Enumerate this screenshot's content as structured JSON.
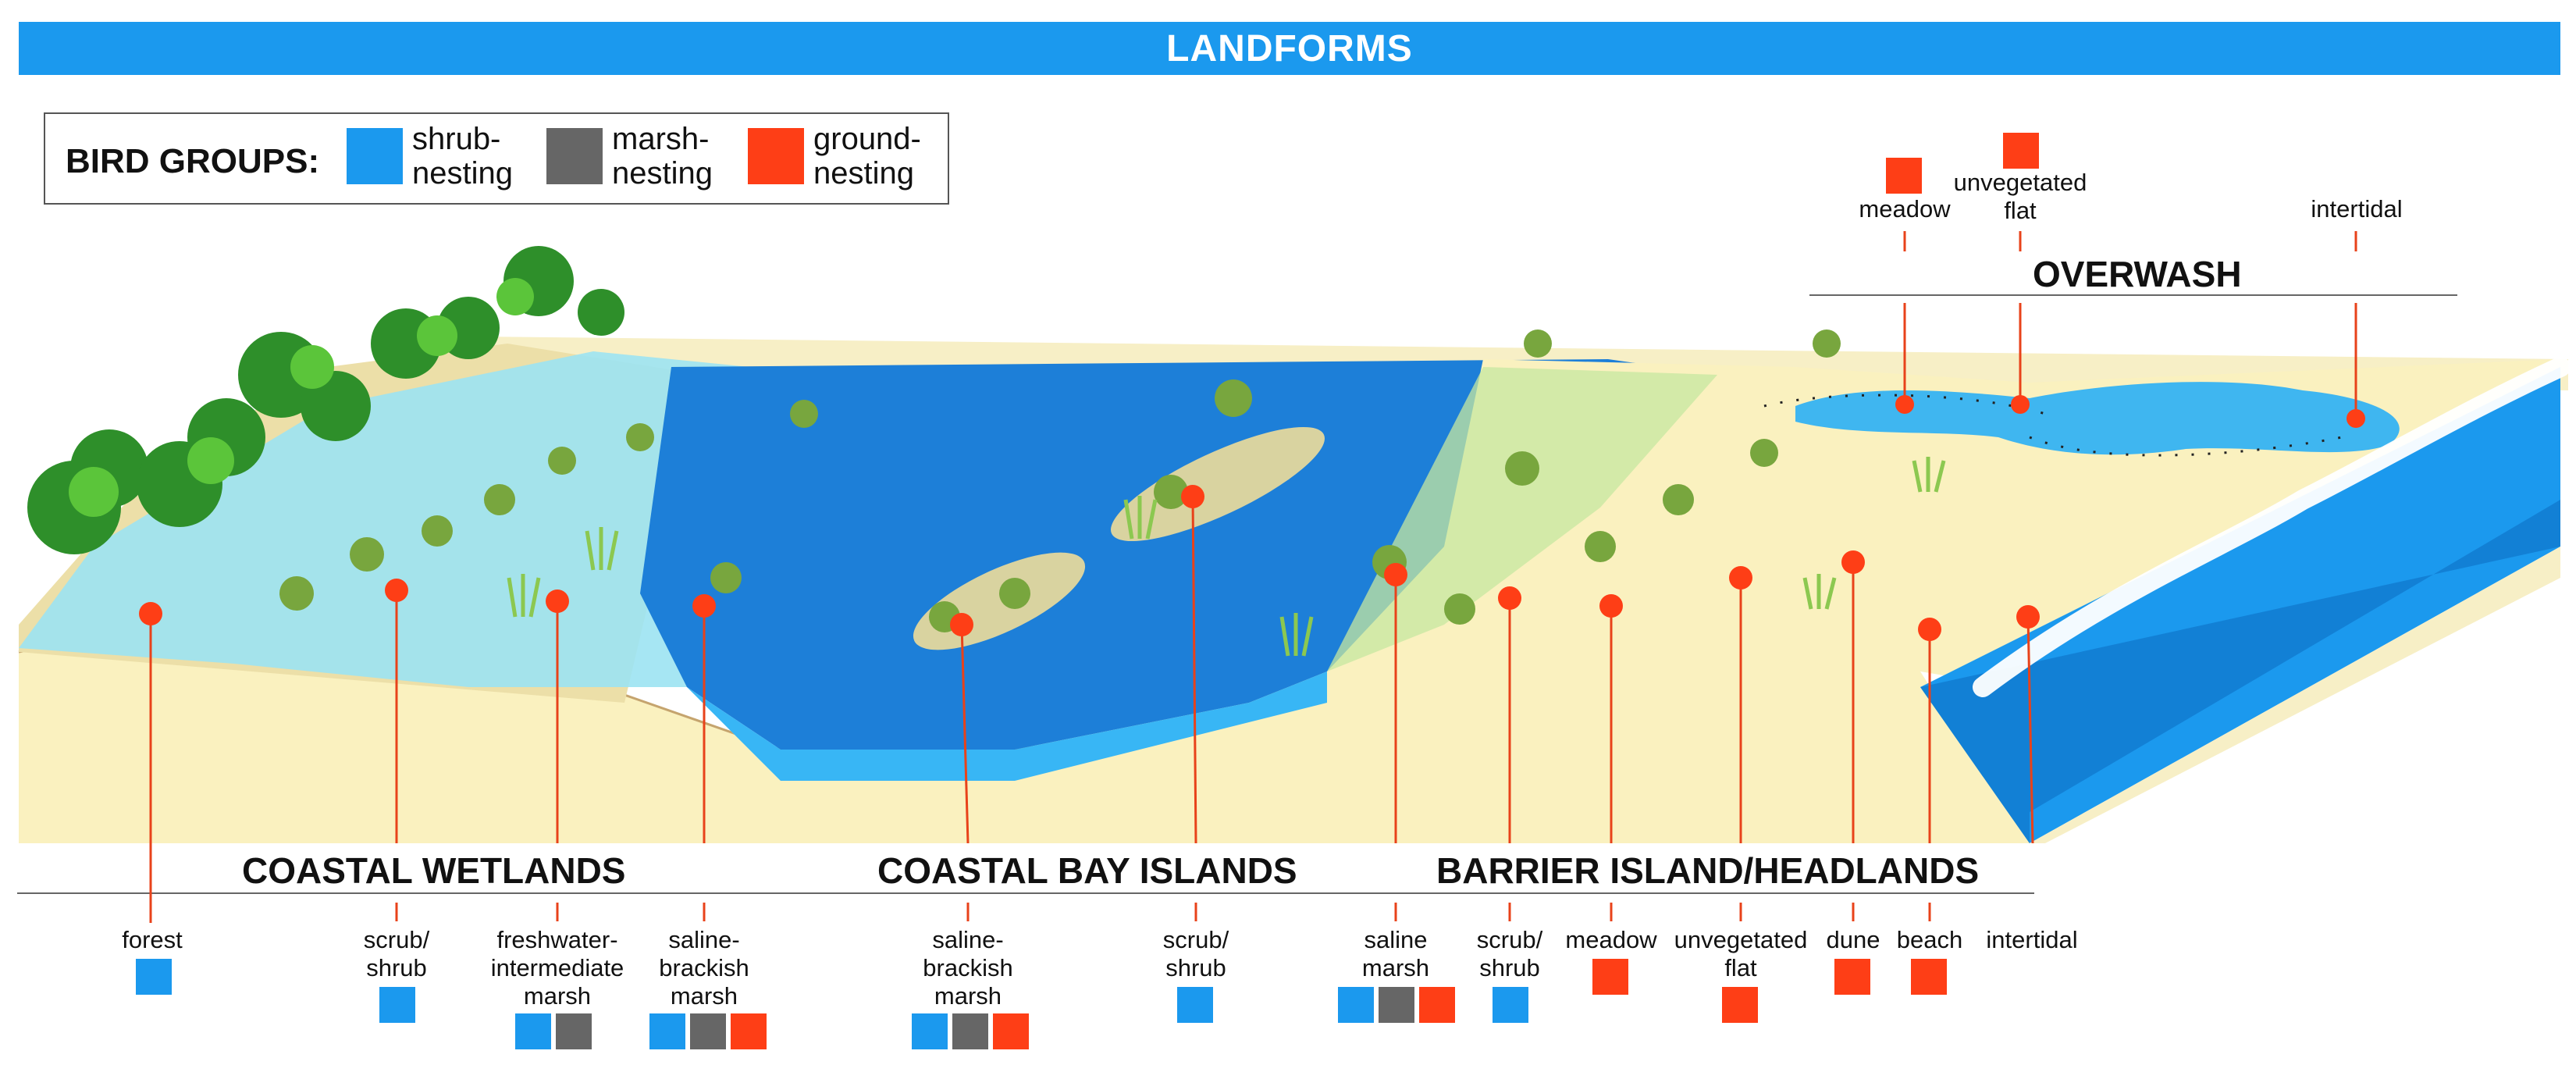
{
  "title": "LANDFORMS",
  "legend": {
    "title": "BIRD GROUPS:",
    "groups": [
      {
        "label": "shrub-\nnesting",
        "l1": "shrub-",
        "l2": "nesting",
        "color": "#1b99ee"
      },
      {
        "label": "marsh-\nnesting",
        "l1": "marsh-",
        "l2": "nesting",
        "color": "#666666"
      },
      {
        "label": "ground-\nnesting",
        "l1": "ground-",
        "l2": "nesting",
        "color": "#fe3e16"
      }
    ]
  },
  "sections": {
    "coastal_wetlands": "COASTAL WETLANDS",
    "coastal_bay_islands": "COASTAL BAY ISLANDS",
    "barrier_island": "BARRIER ISLAND/HEADLANDS",
    "overwash": "OVERWASH"
  },
  "habitats": {
    "forest": {
      "l1": "forest",
      "groups": [
        "shrub"
      ]
    },
    "wet_scrub": {
      "l1": "scrub/",
      "l2": "shrub",
      "groups": [
        "shrub"
      ]
    },
    "fresh_marsh": {
      "l1": "freshwater-",
      "l2": "intermediate",
      "l3": "marsh",
      "groups": [
        "shrub",
        "marsh"
      ]
    },
    "saline_brackish_wet": {
      "l1": "saline-",
      "l2": "brackish",
      "l3": "marsh",
      "groups": [
        "shrub",
        "marsh",
        "ground"
      ]
    },
    "saline_brackish_bay": {
      "l1": "saline-",
      "l2": "brackish",
      "l3": "marsh",
      "groups": [
        "shrub",
        "marsh",
        "ground"
      ]
    },
    "bay_scrub": {
      "l1": "scrub/",
      "l2": "shrub",
      "groups": [
        "shrub"
      ]
    },
    "saline_marsh": {
      "l1": "saline",
      "l2": "marsh",
      "groups": [
        "shrub",
        "marsh",
        "ground"
      ]
    },
    "barrier_scrub": {
      "l1": "scrub/",
      "l2": "shrub",
      "groups": [
        "shrub"
      ]
    },
    "meadow": {
      "l1": "meadow",
      "groups": [
        "ground"
      ]
    },
    "unveg_flat": {
      "l1": "unvegetated",
      "l2": "flat",
      "groups": [
        "ground"
      ]
    },
    "dune": {
      "l1": "dune",
      "groups": [
        "ground"
      ]
    },
    "beach": {
      "l1": "beach",
      "groups": [
        "ground"
      ]
    },
    "intertidal": {
      "l1": "intertidal",
      "groups": []
    },
    "ow_meadow": {
      "l1": "meadow",
      "groups": [
        "ground"
      ]
    },
    "ow_unveg_flat": {
      "l1": "unvegetated",
      "l2": "flat",
      "groups": [
        "ground"
      ]
    },
    "ow_intertidal": {
      "l1": "intertidal",
      "groups": []
    }
  },
  "colors": {
    "shrub": "#1b99ee",
    "marsh": "#666666",
    "ground": "#fe3e16",
    "water": "#1b99ee",
    "sand": "#faf1bf"
  }
}
